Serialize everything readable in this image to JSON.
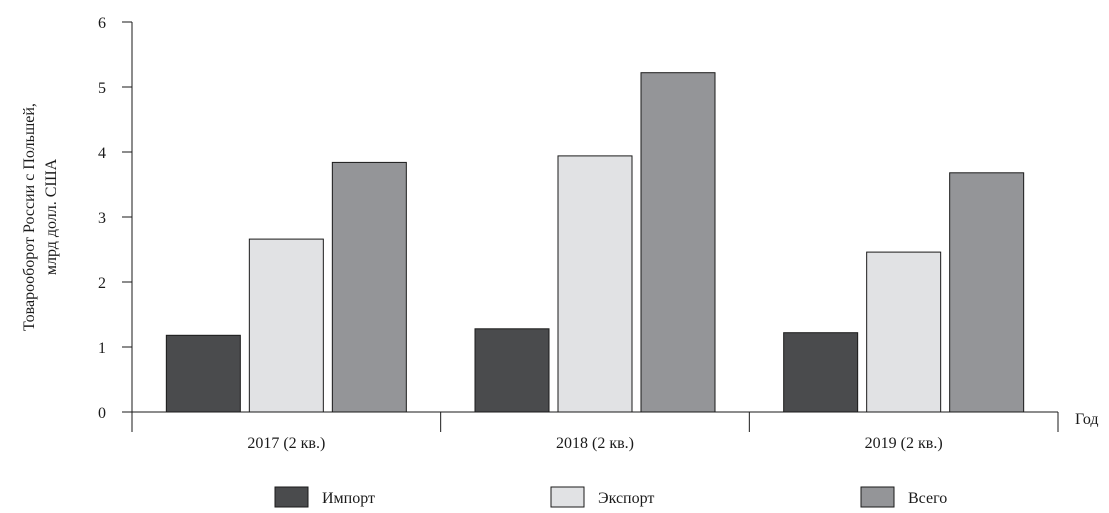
{
  "chart_data": {
    "type": "bar",
    "categories": [
      "2017 (2 кв.)",
      "2018 (2 кв.)",
      "2019 (2 кв.)"
    ],
    "series": [
      {
        "name": "Импорт",
        "values": [
          1.18,
          1.28,
          1.22
        ],
        "color": "#4a4b4d"
      },
      {
        "name": "Экспорт",
        "values": [
          2.66,
          3.94,
          2.46
        ],
        "color": "#e1e2e4"
      },
      {
        "name": "Всего",
        "values": [
          3.84,
          5.22,
          3.68
        ],
        "color": "#949598"
      }
    ],
    "title": "",
    "xlabel": "Год",
    "ylabel_lines": [
      "Товарооборот России с Польшей,",
      "млрд долл. США"
    ],
    "ylim": [
      0,
      6
    ],
    "yticks": [
      0,
      1,
      2,
      3,
      4,
      5,
      6
    ],
    "grid": false,
    "legend_position": "bottom"
  }
}
